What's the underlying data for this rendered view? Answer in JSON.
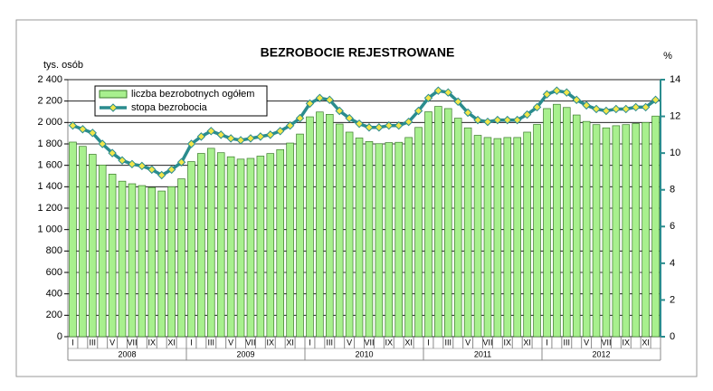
{
  "chart_data": {
    "type": "combo",
    "title": "BEZROBOCIE REJESTROWANE",
    "y_label": "tys. osób",
    "y2_label": "%",
    "categories": [
      "I",
      null,
      "III",
      null,
      "V",
      null,
      "VII",
      null,
      "IX",
      null,
      "XI",
      null,
      "I",
      null,
      "III",
      null,
      "V",
      null,
      "VII",
      null,
      "IX",
      null,
      "XI",
      null,
      "I",
      null,
      "III",
      null,
      "V",
      null,
      "VII",
      null,
      "IX",
      null,
      "XI",
      null,
      "I",
      null,
      "III",
      null,
      "V",
      null,
      "VII",
      null,
      "IX",
      null,
      "XI",
      null,
      "I",
      null,
      "III",
      null,
      "V",
      null,
      "VII",
      null,
      "IX",
      null,
      "XI",
      null
    ],
    "years": [
      "2008",
      "2009",
      "2010",
      "2011",
      "2012"
    ],
    "series": [
      {
        "name": "liczba bezrobotnych ogółem",
        "type": "bar",
        "axis": "y",
        "color": "#a8f08e",
        "values": [
          1817,
          1777,
          1703,
          1603,
          1518,
          1452,
          1428,
          1411,
          1393,
          1360,
          1400,
          1474,
          1635,
          1711,
          1759,
          1718,
          1680,
          1658,
          1665,
          1686,
          1710,
          1747,
          1808,
          1892,
          2053,
          2098,
          2076,
          1986,
          1910,
          1855,
          1822,
          1802,
          1812,
          1815,
          1860,
          1954,
          2100,
          2150,
          2130,
          2040,
          1950,
          1880,
          1860,
          1850,
          1860,
          1860,
          1910,
          1982,
          2130,
          2170,
          2140,
          2070,
          2010,
          1980,
          1950,
          1970,
          1980,
          1990,
          2000,
          2060
        ]
      },
      {
        "name": "stopa bezrobocia",
        "type": "line",
        "axis": "y2",
        "color": "#2a8c8e",
        "values": [
          11.5,
          11.3,
          11.1,
          10.5,
          10.0,
          9.6,
          9.4,
          9.3,
          9.1,
          8.8,
          9.1,
          9.5,
          10.5,
          10.9,
          11.2,
          11.0,
          10.8,
          10.7,
          10.8,
          10.9,
          11.0,
          11.2,
          11.5,
          11.9,
          12.7,
          13.0,
          12.9,
          12.3,
          11.9,
          11.6,
          11.4,
          11.4,
          11.5,
          11.5,
          11.7,
          12.3,
          13.0,
          13.4,
          13.3,
          12.8,
          12.2,
          11.8,
          11.7,
          11.8,
          11.8,
          11.8,
          12.1,
          12.5,
          13.2,
          13.4,
          13.3,
          12.9,
          12.6,
          12.4,
          12.3,
          12.4,
          12.4,
          12.5,
          12.5,
          12.9
        ]
      }
    ],
    "ylim": [
      0,
      2400
    ],
    "yticks": [
      0,
      200,
      400,
      600,
      800,
      {
        "value": 1000,
        "label": "1 000"
      },
      {
        "value": 1200,
        "label": "1 200"
      },
      {
        "value": 1400,
        "label": "1 400"
      },
      {
        "value": 1600,
        "label": "1 600"
      },
      {
        "value": 1800,
        "label": "1 800"
      },
      {
        "value": 2000,
        "label": "2 000"
      },
      {
        "value": 2200,
        "label": "2 200"
      },
      {
        "value": 2400,
        "label": "2 400"
      }
    ],
    "y2lim": [
      0,
      14
    ],
    "y2ticks": [
      0,
      2,
      4,
      6,
      8,
      10,
      12,
      14
    ],
    "grid": true,
    "legend": "top-left"
  }
}
